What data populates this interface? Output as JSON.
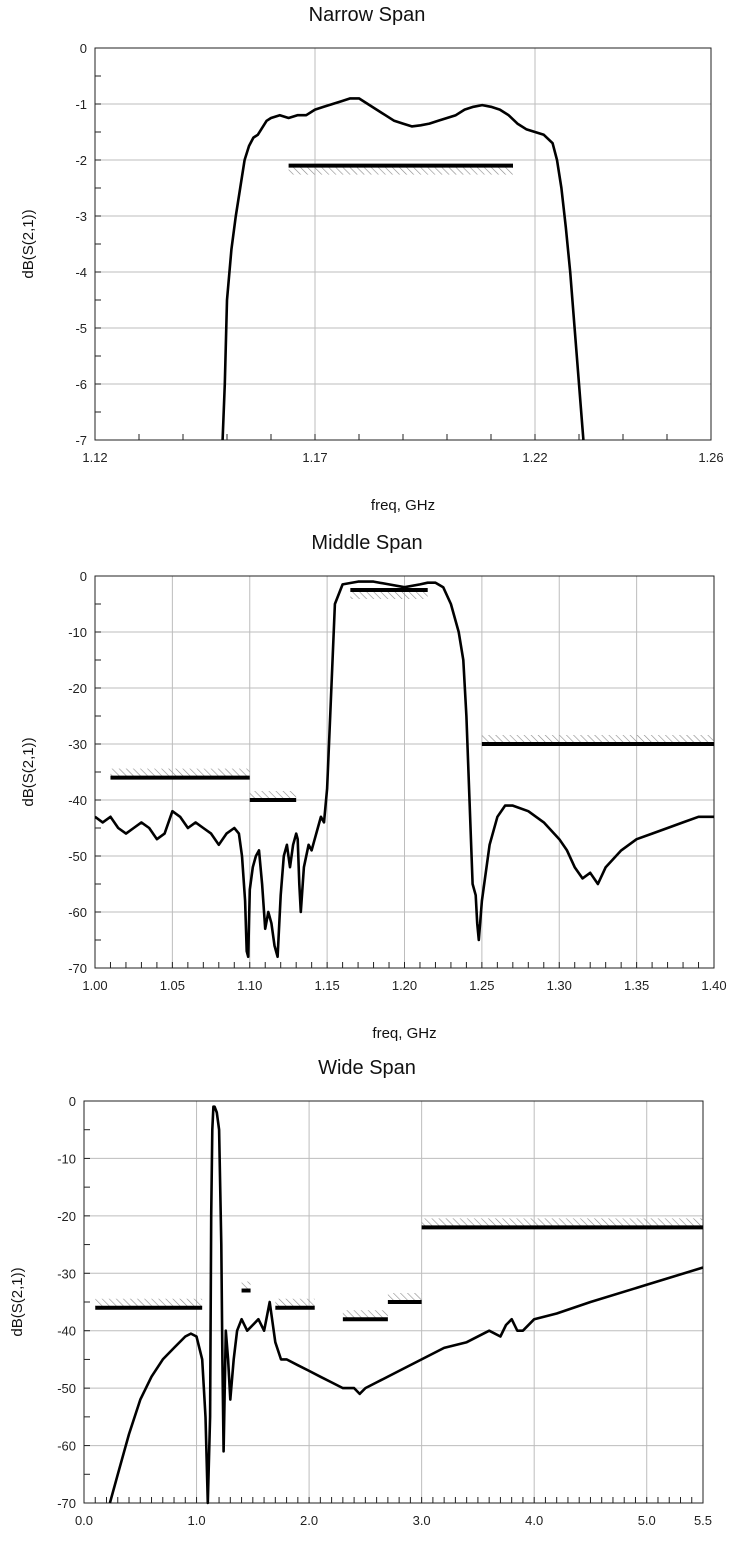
{
  "chart_data": [
    {
      "type": "line",
      "title": "Narrow Span",
      "xlabel": "freq, GHz",
      "ylabel": "dB(S(2,1))",
      "xlim": [
        1.12,
        1.26
      ],
      "ylim": [
        -7,
        0
      ],
      "xticks": [
        1.12,
        1.17,
        1.22,
        1.26
      ],
      "xtick_labels": [
        "1.12",
        "1.17",
        "1.22",
        "1.26"
      ],
      "yticks": [
        0,
        -1,
        -2,
        -3,
        -4,
        -5,
        -6,
        -7
      ],
      "ytick_labels": [
        "0",
        "-1",
        "-2",
        "-3",
        "-4",
        "-5",
        "-6",
        "-7"
      ],
      "grid": true,
      "series": [
        {
          "x": [
            1.149,
            1.1495,
            1.15,
            1.151,
            1.152,
            1.153,
            1.154,
            1.155,
            1.156,
            1.157,
            1.159,
            1.16,
            1.162,
            1.164,
            1.166,
            1.168,
            1.17,
            1.172,
            1.174,
            1.176,
            1.178,
            1.18,
            1.182,
            1.184,
            1.186,
            1.188,
            1.19,
            1.192,
            1.194,
            1.196,
            1.198,
            1.2,
            1.202,
            1.204,
            1.206,
            1.208,
            1.21,
            1.212,
            1.214,
            1.216,
            1.218,
            1.22,
            1.222,
            1.224,
            1.225,
            1.226,
            1.227,
            1.228,
            1.229,
            1.23,
            1.231
          ],
          "y": [
            -7.0,
            -6.0,
            -4.5,
            -3.6,
            -3.0,
            -2.5,
            -2.0,
            -1.75,
            -1.6,
            -1.55,
            -1.3,
            -1.25,
            -1.2,
            -1.25,
            -1.2,
            -1.2,
            -1.1,
            -1.05,
            -1.0,
            -0.95,
            -0.9,
            -0.9,
            -1.0,
            -1.1,
            -1.2,
            -1.3,
            -1.35,
            -1.4,
            -1.38,
            -1.35,
            -1.3,
            -1.25,
            -1.2,
            -1.1,
            -1.05,
            -1.02,
            -1.05,
            -1.1,
            -1.2,
            -1.35,
            -1.45,
            -1.5,
            -1.55,
            -1.7,
            -2.0,
            -2.5,
            -3.2,
            -4.0,
            -5.0,
            -6.0,
            -7.0
          ]
        }
      ],
      "spec_lines": [
        {
          "x0": 1.164,
          "x1": 1.215,
          "y": -2.1,
          "hatch": "below"
        }
      ]
    },
    {
      "type": "line",
      "title": "Middle Span",
      "xlabel": "freq, GHz",
      "ylabel": "dB(S(2,1))",
      "xlim": [
        1.0,
        1.4
      ],
      "ylim": [
        -70,
        0
      ],
      "xticks": [
        1.0,
        1.05,
        1.1,
        1.15,
        1.2,
        1.25,
        1.3,
        1.35,
        1.4
      ],
      "xtick_labels": [
        "1.00",
        "1.05",
        "1.10",
        "1.15",
        "1.20",
        "1.25",
        "1.30",
        "1.35",
        "1.40"
      ],
      "yticks": [
        0,
        -10,
        -20,
        -30,
        -40,
        -50,
        -60,
        -70
      ],
      "ytick_labels": [
        "0",
        "-10",
        "-20",
        "-30",
        "-40",
        "-50",
        "-60",
        "-70"
      ],
      "grid": true,
      "series": [
        {
          "x": [
            1.0,
            1.005,
            1.01,
            1.015,
            1.02,
            1.025,
            1.03,
            1.035,
            1.04,
            1.045,
            1.05,
            1.055,
            1.06,
            1.065,
            1.07,
            1.075,
            1.08,
            1.085,
            1.09,
            1.093,
            1.095,
            1.097,
            1.098,
            1.099,
            1.1,
            1.102,
            1.104,
            1.106,
            1.108,
            1.11,
            1.112,
            1.114,
            1.116,
            1.118,
            1.12,
            1.122,
            1.124,
            1.126,
            1.128,
            1.13,
            1.131,
            1.132,
            1.133,
            1.135,
            1.138,
            1.14,
            1.142,
            1.144,
            1.146,
            1.148,
            1.15,
            1.152,
            1.155,
            1.16,
            1.17,
            1.18,
            1.19,
            1.2,
            1.21,
            1.215,
            1.22,
            1.225,
            1.23,
            1.235,
            1.238,
            1.24,
            1.242,
            1.244,
            1.246,
            1.247,
            1.248,
            1.25,
            1.255,
            1.26,
            1.265,
            1.27,
            1.28,
            1.29,
            1.3,
            1.305,
            1.31,
            1.315,
            1.32,
            1.325,
            1.33,
            1.34,
            1.35,
            1.36,
            1.37,
            1.38,
            1.39,
            1.4
          ],
          "y": [
            -43,
            -44,
            -43,
            -45,
            -46,
            -45,
            -44,
            -45,
            -47,
            -46,
            -42,
            -43,
            -45,
            -44,
            -45,
            -46,
            -48,
            -46,
            -45,
            -46,
            -50,
            -58,
            -67,
            -68,
            -56,
            -52,
            -50,
            -49,
            -55,
            -63,
            -60,
            -62,
            -66,
            -68,
            -57,
            -50,
            -48,
            -52,
            -48,
            -46,
            -47,
            -55,
            -60,
            -52,
            -48,
            -49,
            -47,
            -45,
            -43,
            -44,
            -38,
            -25,
            -5,
            -1.5,
            -1,
            -1,
            -1.5,
            -2,
            -1.5,
            -1.2,
            -1.2,
            -2,
            -5,
            -10,
            -15,
            -25,
            -40,
            -55,
            -57,
            -62,
            -65,
            -58,
            -48,
            -43,
            -41,
            -41,
            -42,
            -44,
            -47,
            -49,
            -52,
            -54,
            -53,
            -55,
            -52,
            -49,
            -47,
            -46,
            -45,
            -44,
            -43,
            -43
          ]
        }
      ],
      "spec_lines": [
        {
          "x0": 1.01,
          "x1": 1.1,
          "y": -36,
          "hatch": "above"
        },
        {
          "x0": 1.1,
          "x1": 1.13,
          "y": -40,
          "hatch": "above"
        },
        {
          "x0": 1.165,
          "x1": 1.215,
          "y": -2.5,
          "hatch": "below"
        },
        {
          "x0": 1.25,
          "x1": 1.4,
          "y": -30,
          "hatch": "above"
        }
      ]
    },
    {
      "type": "line",
      "title": "Wide Span",
      "xlabel": "freq, GHz",
      "ylabel": "dB(S(2,1))",
      "xlim": [
        0.0,
        5.5
      ],
      "ylim": [
        -70,
        0
      ],
      "xticks": [
        0.0,
        1.0,
        2.0,
        3.0,
        4.0,
        5.0,
        5.5
      ],
      "xtick_labels": [
        "0.0",
        "1.0",
        "2.0",
        "3.0",
        "4.0",
        "5.0",
        "5.5"
      ],
      "yticks": [
        0,
        -10,
        -20,
        -30,
        -40,
        -50,
        -60,
        -70
      ],
      "ytick_labels": [
        "0",
        "-10",
        "-20",
        "-30",
        "-40",
        "-50",
        "-60",
        "-70"
      ],
      "grid": true,
      "series": [
        {
          "x": [
            0.23,
            0.3,
            0.4,
            0.5,
            0.6,
            0.7,
            0.8,
            0.9,
            0.95,
            1.0,
            1.05,
            1.08,
            1.1,
            1.12,
            1.13,
            1.14,
            1.15,
            1.16,
            1.18,
            1.2,
            1.22,
            1.23,
            1.24,
            1.26,
            1.28,
            1.3,
            1.33,
            1.36,
            1.4,
            1.45,
            1.5,
            1.55,
            1.6,
            1.65,
            1.7,
            1.75,
            1.8,
            1.9,
            2.0,
            2.1,
            2.2,
            2.3,
            2.4,
            2.45,
            2.5,
            2.6,
            2.8,
            3.0,
            3.2,
            3.4,
            3.6,
            3.7,
            3.75,
            3.8,
            3.85,
            3.9,
            4.0,
            4.2,
            4.5,
            5.0,
            5.5
          ],
          "y": [
            -70,
            -65,
            -58,
            -52,
            -48,
            -45,
            -43,
            -41,
            -40.5,
            -41,
            -45,
            -55,
            -70,
            -55,
            -20,
            -5,
            -1,
            -1,
            -2,
            -5,
            -25,
            -45,
            -61,
            -40,
            -45,
            -52,
            -45,
            -40,
            -38,
            -40,
            -39,
            -38,
            -40,
            -35,
            -42,
            -45,
            -45,
            -46,
            -47,
            -48,
            -49,
            -50,
            -50,
            -51,
            -50,
            -49,
            -47,
            -45,
            -43,
            -42,
            -40,
            -41,
            -39,
            -38,
            -40,
            -40,
            -38,
            -37,
            -35,
            -32,
            -29
          ]
        }
      ],
      "spec_lines": [
        {
          "x0": 0.1,
          "x1": 1.05,
          "y": -36,
          "hatch": "above"
        },
        {
          "x0": 1.4,
          "x1": 1.48,
          "y": -33,
          "hatch": "above"
        },
        {
          "x0": 1.7,
          "x1": 2.05,
          "y": -36,
          "hatch": "above"
        },
        {
          "x0": 2.3,
          "x1": 2.7,
          "y": -38,
          "hatch": "above"
        },
        {
          "x0": 2.7,
          "x1": 3.0,
          "y": -35,
          "hatch": "above"
        },
        {
          "x0": 3.0,
          "x1": 5.5,
          "y": -22,
          "hatch": "above"
        }
      ]
    }
  ]
}
